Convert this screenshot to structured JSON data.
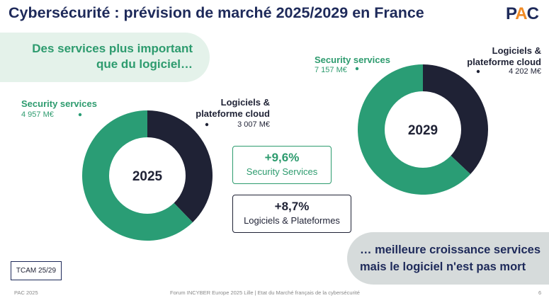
{
  "header": {
    "title": "Cybersécurité : prévision de marché 2025/2029 en France",
    "logo": {
      "part1": "P",
      "part2": "A",
      "part3": "C"
    }
  },
  "banner": {
    "line1": "Des services plus important",
    "line2": "que du logiciel…"
  },
  "chart_data": [
    {
      "type": "pie",
      "title": "2025",
      "categories": [
        "Security services",
        "Logiciels & plateforme cloud"
      ],
      "values": [
        4957,
        3007
      ],
      "value_labels": [
        "4 957 M€",
        "3 007 M€"
      ],
      "colors": [
        "#2a9d75",
        "#1f2235"
      ]
    },
    {
      "type": "pie",
      "title": "2029",
      "categories": [
        "Security services",
        "Logiciels & plateforme cloud"
      ],
      "values": [
        7157,
        4202
      ],
      "value_labels": [
        "7 157 M€",
        "4 202 M€"
      ],
      "colors": [
        "#2a9d75",
        "#1f2235"
      ]
    }
  ],
  "labels": {
    "security_services": "Security services",
    "software_line1": "Logiciels &",
    "software_line2": "plateforme cloud"
  },
  "growth": {
    "security": {
      "value": "+9,6%",
      "caption": "Security Services"
    },
    "software": {
      "value": "+8,7%",
      "caption": "Logiciels & Plateformes"
    }
  },
  "conclusion": {
    "line1": "… meilleure croissance services",
    "line2": "mais le logiciel n'est pas mort"
  },
  "tcam_label": "TCAM 25/29",
  "footer": {
    "left": "PAC 2025",
    "center": "Forum INCYBER Europe 2025 Lille | Etat du Marché français de la cybersécurité",
    "page": "6"
  }
}
